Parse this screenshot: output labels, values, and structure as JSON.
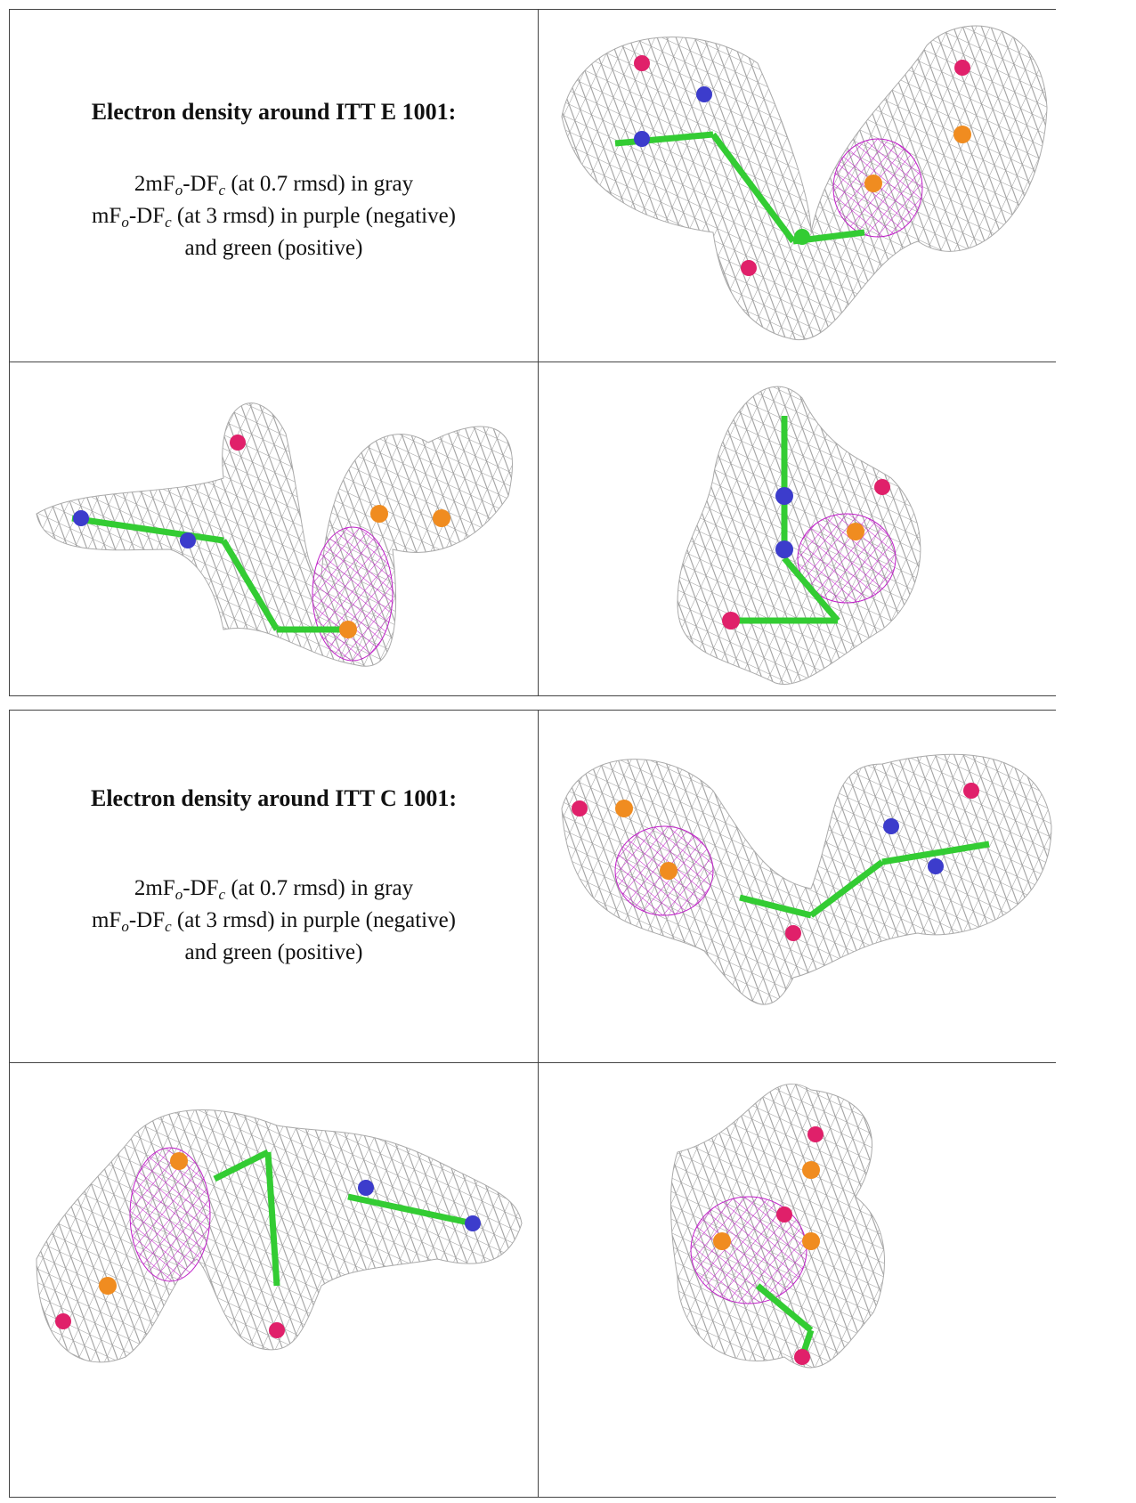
{
  "tables": [
    {
      "title": "Electron density around ITT E 1001:",
      "lines": [
        [
          "2mF",
          "o",
          "-DF",
          "c",
          " (at 0.7 rmsd) in gray"
        ],
        [
          "mF",
          "o",
          "-DF",
          "c",
          " (at 3 rmsd) in purple (negative)"
        ],
        [
          "and green (positive)"
        ]
      ]
    },
    {
      "title": "Electron density around ITT C 1001:",
      "lines": [
        [
          "2mF",
          "o",
          "-DF",
          "c",
          " (at 0.7 rmsd) in gray"
        ],
        [
          "mF",
          "o",
          "-DF",
          "c",
          " (at 3 rmsd) in purple (negative)"
        ],
        [
          "and green (positive)"
        ]
      ]
    }
  ]
}
